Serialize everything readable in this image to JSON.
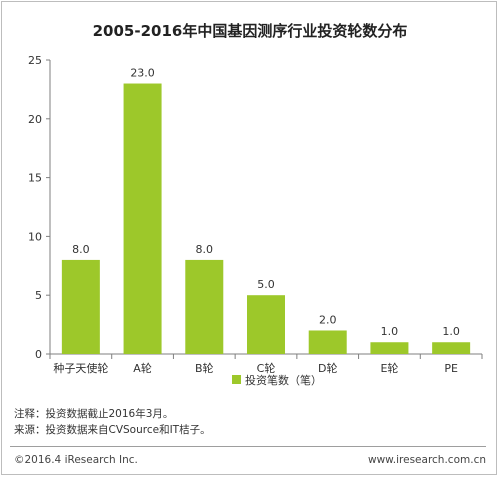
{
  "chart_data": {
    "type": "bar",
    "title": "2005-2016年中国基因测序行业投资轮数分布",
    "categories": [
      "种子天使轮",
      "A轮",
      "B轮",
      "C轮",
      "D轮",
      "E轮",
      "PE"
    ],
    "series": [
      {
        "name": "投资笔数（笔）",
        "values": [
          8.0,
          23.0,
          8.0,
          5.0,
          2.0,
          1.0,
          1.0
        ]
      }
    ],
    "value_labels": [
      "8.0",
      "23.0",
      "8.0",
      "5.0",
      "2.0",
      "1.0",
      "1.0"
    ],
    "y_ticks": [
      "0",
      "5",
      "10",
      "15",
      "20",
      "25"
    ],
    "ylim": [
      0,
      25
    ],
    "grid": false,
    "legend": "bottom-center",
    "bar_color": "#9dc82a"
  },
  "notes": {
    "line1": "注释：投资数据截止2016年3月。",
    "line2": "来源：投资数据来自CVSource和IT桔子。"
  },
  "footer": {
    "copyright": "©2016.4 iResearch Inc.",
    "website": "www.iresearch.com.cn"
  }
}
